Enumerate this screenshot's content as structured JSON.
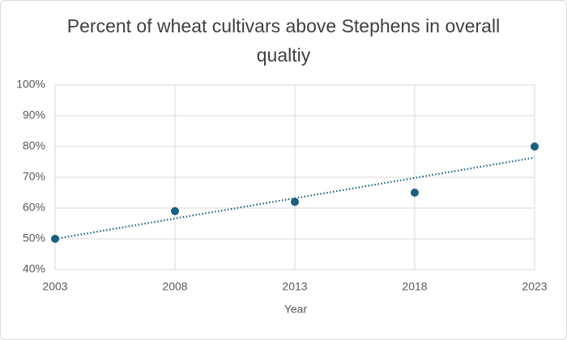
{
  "chart_data": {
    "type": "scatter",
    "title": "Percent of wheat cultivars above Stephens in overall qualtiy",
    "x_label": "Year",
    "x": [
      2003,
      2008,
      2013,
      2018,
      2023
    ],
    "series": [
      {
        "color": "#17607f",
        "values": [
          50,
          59,
          62,
          65,
          80
        ]
      }
    ],
    "trendline": "linear",
    "xlim": [
      2003,
      2023
    ],
    "xticks": [
      2003,
      2008,
      2013,
      2018,
      2023
    ],
    "ylim": [
      40,
      100
    ],
    "yticks": [
      {
        "value": 40,
        "label": "40%"
      },
      {
        "value": 50,
        "label": "50%"
      },
      {
        "value": 60,
        "label": "60%"
      },
      {
        "value": 70,
        "label": "70%"
      },
      {
        "value": 80,
        "label": "80%"
      },
      {
        "value": 90,
        "label": "90%"
      },
      {
        "value": 100,
        "label": "100%"
      }
    ],
    "grid": true
  }
}
